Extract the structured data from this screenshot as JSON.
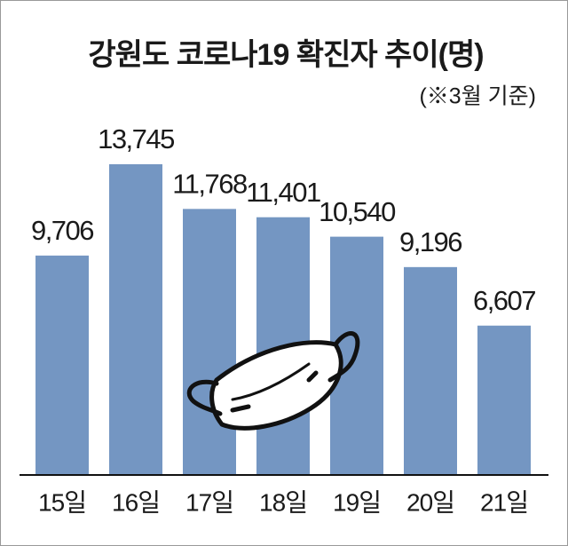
{
  "chart_data": {
    "type": "bar",
    "title": "강원도 코로나19 확진자 추이(명)",
    "subtitle": "(※3월 기준)",
    "categories": [
      "15일",
      "16일",
      "17일",
      "18일",
      "19일",
      "20일",
      "21일"
    ],
    "values": [
      9706,
      13745,
      11768,
      11401,
      10540,
      9196,
      6607
    ],
    "value_labels": [
      "9,706",
      "13,745",
      "11,768",
      "11,401",
      "10,540",
      "9,196",
      "6,607"
    ],
    "color": "#7496c2"
  }
}
